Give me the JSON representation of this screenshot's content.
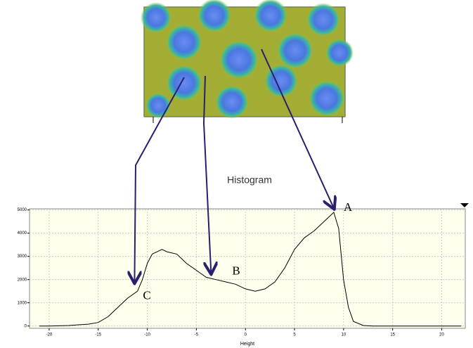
{
  "chart_data": {
    "type": "line",
    "title": "Histogram",
    "x_label": "Height",
    "x": [
      -21,
      -20,
      -18,
      -17,
      -16,
      -15,
      -14,
      -13,
      -12,
      -11,
      -10.5,
      -10,
      -9.5,
      -9,
      -8.5,
      -8,
      -7,
      -6,
      -5,
      -4,
      -3,
      -2,
      -1,
      0,
      1,
      2,
      3,
      4,
      5,
      6,
      7,
      8,
      8.5,
      9,
      9.5,
      10,
      10.5,
      11,
      12,
      13,
      15,
      20,
      22
    ],
    "values": [
      0,
      0,
      20,
      50,
      80,
      150,
      400,
      800,
      1200,
      1500,
      2000,
      2700,
      3100,
      3200,
      3300,
      3200,
      3100,
      2700,
      2400,
      2100,
      2000,
      1900,
      1800,
      1600,
      1500,
      1600,
      1900,
      2500,
      3300,
      3800,
      4100,
      4500,
      4700,
      4900,
      4200,
      2000,
      800,
      200,
      20,
      0,
      0,
      0,
      0
    ],
    "color": "#000000",
    "xlim": [
      -22,
      22.4
    ],
    "xticks": [
      -20,
      -15,
      -10,
      -5,
      0,
      5,
      10,
      15,
      20
    ],
    "ylim": [
      -100,
      5050
    ],
    "yticks": [
      0,
      1000,
      2000,
      3000,
      4000,
      5000
    ],
    "grid": true,
    "annotations": [
      {
        "text": "A",
        "x": 9,
        "y": 4900
      },
      {
        "text": "B",
        "x": -3.5,
        "y": 2100
      },
      {
        "text": "C",
        "x": -11.3,
        "y": 1700
      }
    ]
  }
}
